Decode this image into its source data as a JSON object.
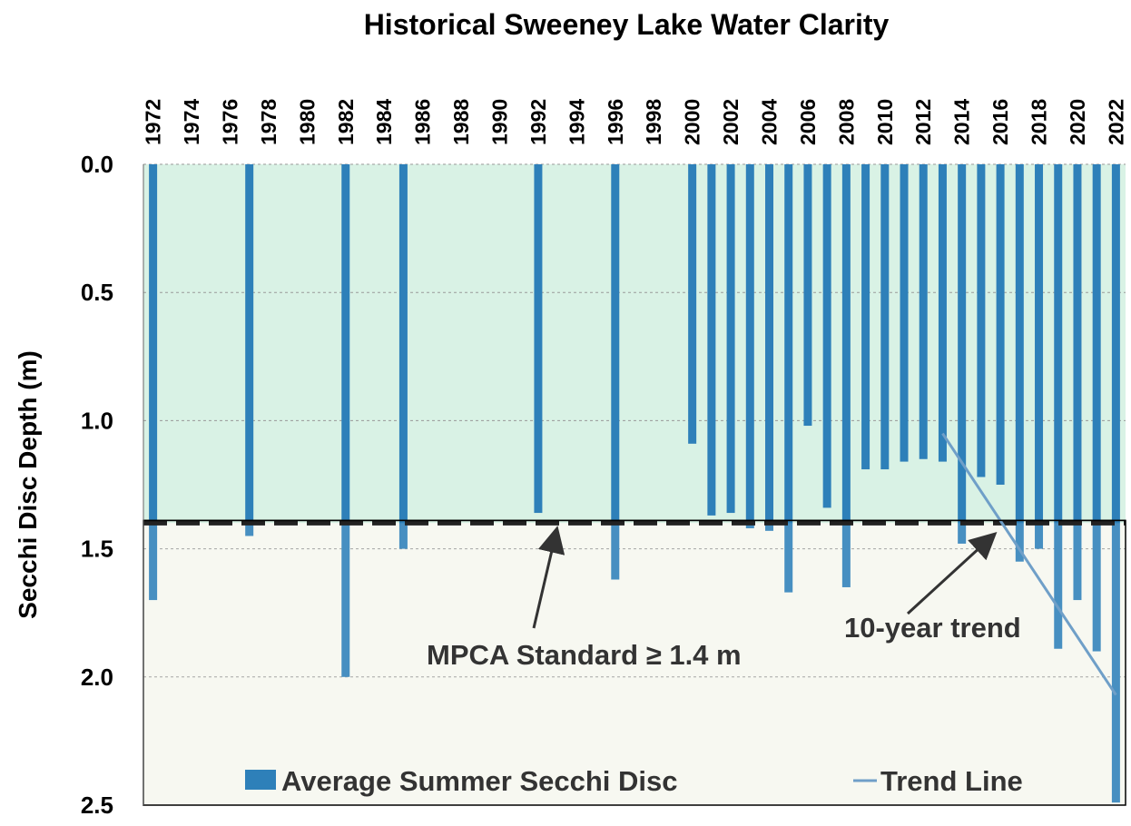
{
  "chart_data": {
    "type": "bar",
    "title": "Historical Sweeney Lake Water Clarity",
    "y_label": "Secchi Disc Depth (m)",
    "categories": [
      "1972",
      null,
      "1974",
      null,
      "1976",
      null,
      "1978",
      null,
      "1980",
      null,
      "1982",
      null,
      "1984",
      null,
      "1986",
      null,
      "1988",
      null,
      "1990",
      null,
      "1992",
      null,
      "1994",
      null,
      "1996",
      null,
      "1998",
      null,
      "2000",
      null,
      "2002",
      null,
      "2004",
      null,
      "2006",
      null,
      "2008",
      null,
      "2010",
      null,
      "2012",
      null,
      "2014",
      null,
      "2016",
      null,
      "2018",
      null,
      "2020",
      null,
      "2022"
    ],
    "series": [
      {
        "name": "Average Summer Secchi Disc",
        "color": "#2e80b9",
        "values": [
          1.7,
          null,
          null,
          null,
          null,
          1.45,
          null,
          null,
          null,
          null,
          2.0,
          null,
          null,
          1.5,
          null,
          null,
          null,
          null,
          null,
          null,
          1.36,
          null,
          null,
          null,
          1.62,
          null,
          null,
          null,
          1.09,
          1.37,
          1.36,
          1.42,
          1.43,
          1.67,
          1.02,
          1.34,
          1.65,
          1.19,
          1.19,
          1.16,
          1.15,
          1.16,
          1.48,
          1.22,
          1.25,
          1.55,
          1.5,
          1.89,
          1.7,
          1.9,
          2.49
        ]
      }
    ],
    "trend_line": {
      "name": "Trend Line",
      "color": "#6f9fc8",
      "x": [
        "2013",
        "2022"
      ],
      "values": [
        1.05,
        2.07
      ]
    },
    "standard": 1.4,
    "annotations": [
      "MPCA Standard ≥ 1.4 m",
      "10-year trend"
    ],
    "ylim": [
      0,
      2.5
    ],
    "yticks": [
      {
        "value": 0,
        "label": "0.0"
      },
      0.5,
      {
        "value": 1,
        "label": "1.0"
      },
      1.5,
      {
        "value": 2,
        "label": "2.0"
      },
      2.5
    ],
    "y_inverted": true,
    "grid": true,
    "legend": "bottom"
  }
}
